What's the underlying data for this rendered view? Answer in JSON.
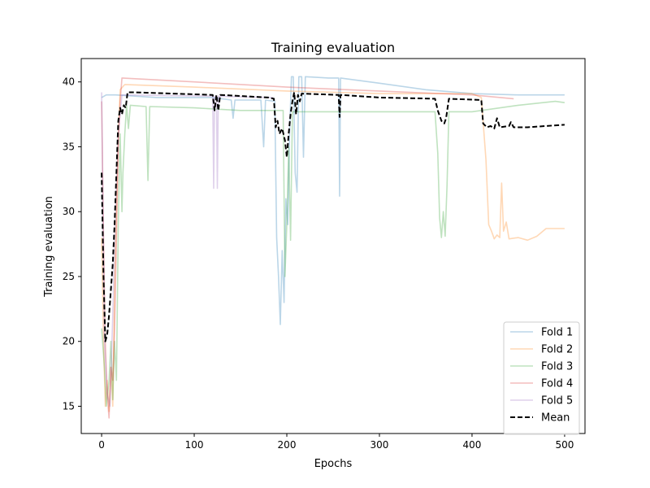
{
  "chart_data": {
    "type": "line",
    "title": "Training evaluation",
    "xlabel": "Epochs",
    "ylabel": "Training evaluation",
    "xlim": [
      -22,
      522
    ],
    "ylim": [
      12.9,
      41.8
    ],
    "xticks": [
      0,
      100,
      200,
      300,
      400,
      500
    ],
    "yticks": [
      15,
      20,
      25,
      30,
      35,
      40
    ],
    "grid": false,
    "legend_position": "lower-right",
    "series": [
      {
        "name": "Fold 1",
        "color": "#1f77b4",
        "opacity": 0.3,
        "dashed": false,
        "points": [
          [
            0,
            38.8
          ],
          [
            5,
            39.0
          ],
          [
            15,
            39.0
          ],
          [
            60,
            38.8
          ],
          [
            120,
            38.8
          ],
          [
            140,
            38.6
          ],
          [
            142,
            37.2
          ],
          [
            144,
            38.6
          ],
          [
            172,
            38.6
          ],
          [
            175,
            35.0
          ],
          [
            177,
            38.6
          ],
          [
            187,
            38.5
          ],
          [
            189,
            28.0
          ],
          [
            191,
            25.0
          ],
          [
            193,
            21.3
          ],
          [
            195,
            27.0
          ],
          [
            197,
            23.0
          ],
          [
            199,
            31.0
          ],
          [
            201,
            29.0
          ],
          [
            203,
            36.0
          ],
          [
            205,
            40.4
          ],
          [
            207,
            40.4
          ],
          [
            209,
            33.0
          ],
          [
            211,
            31.5
          ],
          [
            213,
            40.4
          ],
          [
            216,
            40.4
          ],
          [
            218,
            34.2
          ],
          [
            220,
            40.4
          ],
          [
            245,
            40.3
          ],
          [
            256,
            40.3
          ],
          [
            257,
            31.2
          ],
          [
            258,
            40.3
          ],
          [
            300,
            39.9
          ],
          [
            350,
            39.4
          ],
          [
            400,
            39.1
          ],
          [
            450,
            39.0
          ],
          [
            500,
            39.0
          ]
        ]
      },
      {
        "name": "Fold 2",
        "color": "#ff7f0e",
        "opacity": 0.3,
        "dashed": false,
        "points": [
          [
            0,
            28.0
          ],
          [
            2,
            20.0
          ],
          [
            4,
            15.0
          ],
          [
            6,
            17.0
          ],
          [
            8,
            14.6
          ],
          [
            10,
            18.0
          ],
          [
            12,
            15.0
          ],
          [
            14,
            24.0
          ],
          [
            16,
            30.0
          ],
          [
            18,
            36.0
          ],
          [
            20,
            39.4
          ],
          [
            25,
            39.8
          ],
          [
            100,
            39.6
          ],
          [
            200,
            39.3
          ],
          [
            300,
            39.1
          ],
          [
            400,
            39.1
          ],
          [
            410,
            38.8
          ],
          [
            415,
            34.0
          ],
          [
            418,
            29.0
          ],
          [
            421,
            28.5
          ],
          [
            424,
            27.9
          ],
          [
            427,
            28.2
          ],
          [
            430,
            28.0
          ],
          [
            432,
            32.2
          ],
          [
            434,
            28.5
          ],
          [
            437,
            29.2
          ],
          [
            440,
            27.9
          ],
          [
            450,
            28.0
          ],
          [
            460,
            27.8
          ],
          [
            470,
            28.1
          ],
          [
            480,
            28.7
          ],
          [
            500,
            28.7
          ]
        ]
      },
      {
        "name": "Fold 3",
        "color": "#2ca02c",
        "opacity": 0.3,
        "dashed": false,
        "points": [
          [
            0,
            21.0
          ],
          [
            3,
            18.0
          ],
          [
            5,
            15.0
          ],
          [
            8,
            17.0
          ],
          [
            10,
            20.0
          ],
          [
            12,
            15.5
          ],
          [
            14,
            20.0
          ],
          [
            16,
            17.0
          ],
          [
            18,
            29.0
          ],
          [
            20,
            36.0
          ],
          [
            22,
            30.0
          ],
          [
            23,
            33.0
          ],
          [
            25,
            36.0
          ],
          [
            27,
            38.2
          ],
          [
            29,
            36.4
          ],
          [
            31,
            38.2
          ],
          [
            48,
            38.1
          ],
          [
            50,
            32.4
          ],
          [
            52,
            38.1
          ],
          [
            100,
            38.0
          ],
          [
            150,
            37.8
          ],
          [
            196,
            37.8
          ],
          [
            198,
            25.0
          ],
          [
            200,
            29.0
          ],
          [
            202,
            35.0
          ],
          [
            204,
            27.8
          ],
          [
            206,
            37.7
          ],
          [
            250,
            37.7
          ],
          [
            300,
            37.7
          ],
          [
            360,
            37.7
          ],
          [
            363,
            34.5
          ],
          [
            365,
            29.5
          ],
          [
            367,
            28.0
          ],
          [
            369,
            30.0
          ],
          [
            371,
            28.1
          ],
          [
            373,
            32.0
          ],
          [
            375,
            37.7
          ],
          [
            400,
            37.7
          ],
          [
            450,
            38.2
          ],
          [
            490,
            38.5
          ],
          [
            500,
            38.4
          ]
        ]
      },
      {
        "name": "Fold 4",
        "color": "#d62728",
        "opacity": 0.3,
        "dashed": false,
        "points": [
          [
            0,
            38.5
          ],
          [
            2,
            28.0
          ],
          [
            4,
            20.0
          ],
          [
            6,
            16.0
          ],
          [
            8,
            14.1
          ],
          [
            10,
            18.0
          ],
          [
            12,
            17.0
          ],
          [
            14,
            21.0
          ],
          [
            16,
            28.0
          ],
          [
            18,
            35.0
          ],
          [
            20,
            38.5
          ],
          [
            22,
            40.3
          ],
          [
            100,
            40.0
          ],
          [
            200,
            39.6
          ],
          [
            300,
            39.3
          ],
          [
            400,
            39.0
          ],
          [
            445,
            38.7
          ]
        ]
      },
      {
        "name": "Fold 5",
        "color": "#9467bd",
        "opacity": 0.3,
        "dashed": false,
        "points": [
          [
            0,
            39.2
          ],
          [
            3,
            20.0
          ],
          [
            6,
            16.0
          ],
          [
            9,
            15.0
          ],
          [
            12,
            22.0
          ],
          [
            15,
            30.0
          ],
          [
            18,
            36.0
          ],
          [
            22,
            39.0
          ],
          [
            120,
            38.9
          ],
          [
            121,
            31.8
          ],
          [
            122,
            38.9
          ],
          [
            124,
            38.9
          ],
          [
            125,
            31.8
          ],
          [
            126,
            38.9
          ],
          [
            185,
            38.8
          ]
        ]
      },
      {
        "name": "Mean",
        "color": "#000000",
        "opacity": 1,
        "dashed": true,
        "points": [
          [
            0,
            33.0
          ],
          [
            2,
            25.0
          ],
          [
            4,
            20.0
          ],
          [
            6,
            20.5
          ],
          [
            8,
            22.0
          ],
          [
            10,
            24.0
          ],
          [
            12,
            26.0
          ],
          [
            14,
            29.0
          ],
          [
            16,
            33.0
          ],
          [
            18,
            37.0
          ],
          [
            20,
            38.0
          ],
          [
            22,
            37.5
          ],
          [
            24,
            38.2
          ],
          [
            26,
            38.0
          ],
          [
            28,
            39.2
          ],
          [
            35,
            39.2
          ],
          [
            120,
            39.0
          ],
          [
            122,
            37.8
          ],
          [
            124,
            39.0
          ],
          [
            126,
            37.8
          ],
          [
            128,
            39.0
          ],
          [
            180,
            38.8
          ],
          [
            186,
            38.7
          ],
          [
            188,
            36.5
          ],
          [
            190,
            37.0
          ],
          [
            192,
            36.0
          ],
          [
            195,
            36.4
          ],
          [
            198,
            35.5
          ],
          [
            200,
            34.2
          ],
          [
            202,
            36.0
          ],
          [
            204,
            37.5
          ],
          [
            206,
            38.5
          ],
          [
            208,
            39.2
          ],
          [
            210,
            37.5
          ],
          [
            212,
            39.0
          ],
          [
            214,
            38.5
          ],
          [
            216,
            39.1
          ],
          [
            256,
            39.0
          ],
          [
            257,
            37.3
          ],
          [
            258,
            39.0
          ],
          [
            300,
            38.8
          ],
          [
            360,
            38.7
          ],
          [
            363,
            37.8
          ],
          [
            367,
            37.0
          ],
          [
            370,
            36.8
          ],
          [
            372,
            37.2
          ],
          [
            375,
            38.7
          ],
          [
            410,
            38.6
          ],
          [
            412,
            36.8
          ],
          [
            416,
            36.5
          ],
          [
            420,
            36.6
          ],
          [
            424,
            36.4
          ],
          [
            427,
            37.2
          ],
          [
            430,
            36.5
          ],
          [
            440,
            36.6
          ],
          [
            442,
            36.9
          ],
          [
            445,
            36.5
          ],
          [
            460,
            36.5
          ],
          [
            480,
            36.6
          ],
          [
            500,
            36.7
          ]
        ]
      }
    ]
  }
}
